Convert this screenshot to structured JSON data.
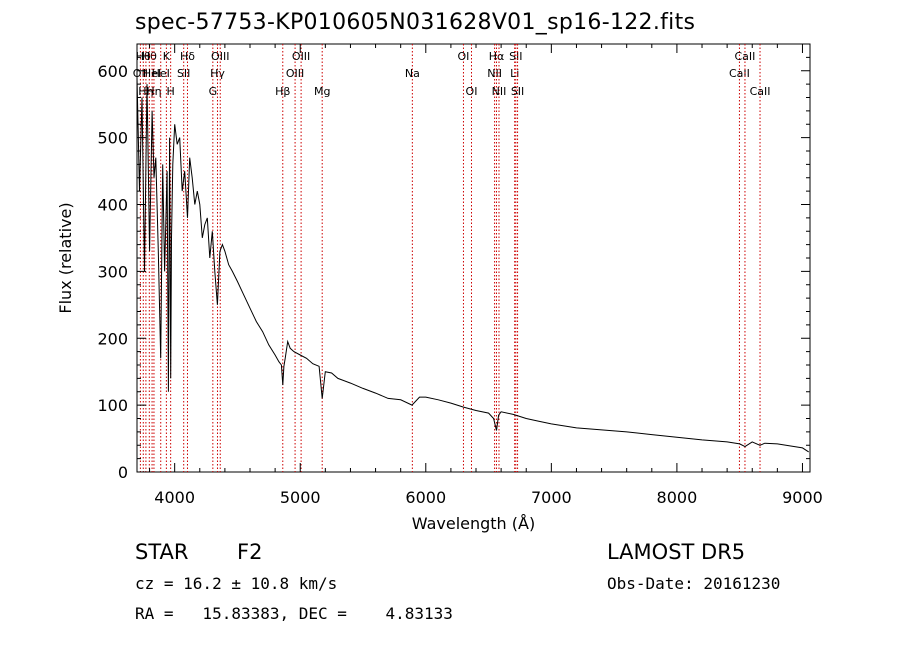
{
  "window": {
    "title": "spec-57753-KP010605N031628V01_sp16-122.fits"
  },
  "footer": {
    "object_class": "STAR",
    "subclass": "F2",
    "survey": "LAMOST DR5",
    "redshift_line": "cz = 16.2 ± 10.8 km/s",
    "obs_date_line": "Obs-Date: 20161230",
    "coords_line": "RA =   15.83383, DEC =    4.83133"
  },
  "chart_data": {
    "type": "line",
    "title": "spec-57753-KP010605N031628V01_sp16-122.fits",
    "xlabel": "Wavelength (Å)",
    "ylabel": "Flux (relative)",
    "xlim": [
      3700,
      9060
    ],
    "ylim": [
      0,
      640
    ],
    "xticks": [
      4000,
      5000,
      6000,
      7000,
      8000,
      9000
    ],
    "yticks": [
      0,
      100,
      200,
      300,
      400,
      500,
      600
    ],
    "line_color": "#000000",
    "marker_color": "#cc0000",
    "grid": false,
    "series": [
      {
        "x": [
          3700,
          3720,
          3740,
          3760,
          3780,
          3800,
          3820,
          3835,
          3850,
          3870,
          3889,
          3905,
          3920,
          3940,
          3950,
          3960,
          3968,
          3975,
          3985,
          4000,
          4020,
          4040,
          4060,
          4080,
          4102,
          4120,
          4140,
          4160,
          4180,
          4200,
          4220,
          4240,
          4260,
          4280,
          4300,
          4320,
          4340,
          4360,
          4380,
          4400,
          4430,
          4460,
          4500,
          4550,
          4600,
          4650,
          4700,
          4750,
          4800,
          4830,
          4850,
          4861,
          4870,
          4880,
          4900,
          4920,
          4950,
          5000,
          5050,
          5100,
          5150,
          5175,
          5200,
          5250,
          5300,
          5400,
          5500,
          5600,
          5700,
          5800,
          5890,
          5950,
          6000,
          6100,
          6200,
          6300,
          6400,
          6500,
          6540,
          6563,
          6580,
          6600,
          6700,
          6800,
          6900,
          7000,
          7200,
          7400,
          7600,
          7800,
          8000,
          8200,
          8400,
          8500,
          8542,
          8600,
          8662,
          8700,
          8800,
          8900,
          9000,
          9050
        ],
        "y": [
          590,
          420,
          560,
          300,
          580,
          330,
          540,
          440,
          470,
          330,
          170,
          460,
          300,
          450,
          120,
          500,
          140,
          350,
          460,
          520,
          490,
          500,
          420,
          450,
          380,
          470,
          440,
          400,
          420,
          400,
          350,
          370,
          380,
          320,
          360,
          300,
          250,
          330,
          340,
          330,
          310,
          300,
          285,
          265,
          245,
          225,
          210,
          190,
          175,
          165,
          160,
          130,
          158,
          170,
          195,
          185,
          180,
          175,
          170,
          162,
          158,
          110,
          150,
          148,
          140,
          133,
          125,
          118,
          110,
          108,
          100,
          112,
          112,
          108,
          103,
          97,
          92,
          88,
          80,
          62,
          85,
          90,
          86,
          80,
          76,
          72,
          66,
          63,
          60,
          56,
          52,
          48,
          45,
          42,
          38,
          45,
          40,
          43,
          42,
          39,
          36,
          30
        ]
      }
    ],
    "line_markers": [
      {
        "wl": 3727,
        "label": "OII",
        "row": 1
      },
      {
        "wl": 3750,
        "label": "Hθ",
        "row": 0
      },
      {
        "wl": 3771,
        "label": "Hη",
        "row": 2
      },
      {
        "wl": 3798,
        "label": "Hθ",
        "row": 0
      },
      {
        "wl": 3820,
        "label": "HeI",
        "row": 1
      },
      {
        "wl": 3835,
        "label": "Hη",
        "row": 2
      },
      {
        "wl": 3889,
        "label": "HeI",
        "row": 1
      },
      {
        "wl": 3934,
        "label": "K",
        "row": 0
      },
      {
        "wl": 3968,
        "label": "H",
        "row": 2
      },
      {
        "wl": 4072,
        "label": "SII",
        "row": 1
      },
      {
        "wl": 4102,
        "label": "Hδ",
        "row": 0
      },
      {
        "wl": 4304,
        "label": "G",
        "row": 2
      },
      {
        "wl": 4341,
        "label": "Hγ",
        "row": 1
      },
      {
        "wl": 4363,
        "label": "OIII",
        "row": 0
      },
      {
        "wl": 4861,
        "label": "Hβ",
        "row": 2
      },
      {
        "wl": 4959,
        "label": "OIII",
        "row": 1
      },
      {
        "wl": 5007,
        "label": "OIII",
        "row": 0
      },
      {
        "wl": 5175,
        "label": "Mg",
        "row": 2
      },
      {
        "wl": 5893,
        "label": "Na",
        "row": 1
      },
      {
        "wl": 6300,
        "label": "OI",
        "row": 0
      },
      {
        "wl": 6364,
        "label": "OI",
        "row": 2
      },
      {
        "wl": 6548,
        "label": "NII",
        "row": 1
      },
      {
        "wl": 6563,
        "label": "Hα",
        "row": 0
      },
      {
        "wl": 6583,
        "label": "NII",
        "row": 2
      },
      {
        "wl": 6708,
        "label": "Li",
        "row": 1
      },
      {
        "wl": 6717,
        "label": "SII",
        "row": 0
      },
      {
        "wl": 6731,
        "label": "SII",
        "row": 2
      },
      {
        "wl": 8498,
        "label": "CaII",
        "row": 1
      },
      {
        "wl": 8542,
        "label": "CaII",
        "row": 0
      },
      {
        "wl": 8662,
        "label": "CaII",
        "row": 2
      }
    ]
  }
}
